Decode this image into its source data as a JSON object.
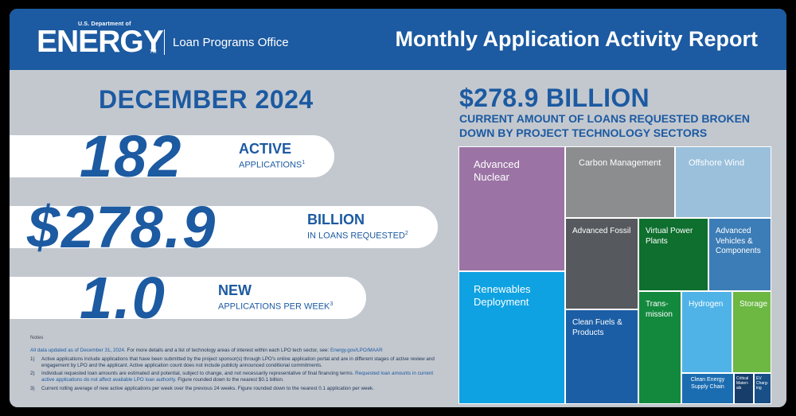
{
  "header": {
    "dept_small": "U.S. Department of",
    "dept_logo": "ENERGY",
    "dept_tm": "TM",
    "office": "Loan Programs Office",
    "title": "Monthly Application Activity Report"
  },
  "month": "DECEMBER 2024",
  "stats": [
    {
      "value": "182",
      "heading": "ACTIVE",
      "sub": "APPLICATIONS",
      "footnote": "1"
    },
    {
      "value": "$278.9",
      "heading": "BILLION",
      "sub": "IN LOANS REQUESTED",
      "footnote": "2"
    },
    {
      "value": "1.0",
      "heading": "NEW",
      "sub": "APPLICATIONS PER WEEK",
      "footnote": "3"
    }
  ],
  "notes": {
    "title": "Notes",
    "intro_a": "All data updated as of December 31, 2024.",
    "intro_b": " For more details and a list of technology areas of interest within each LPO tech sector, see: ",
    "intro_link": "Energy.gov/LPO/MAAR",
    "items": [
      {
        "num": "1)",
        "text": "Active applications include applications that have been submitted by the project sponsor(s) through LPO's online application portal and are in different stages of active review and engagement by LPO and the applicant. Active application count does not include publicly announced conditional commitments."
      },
      {
        "num": "2)",
        "text": "Individual requested loan amounts are estimated and potential, subject to change, and not necessarily representative of final financing terms. ",
        "highlight": "Requested loan amounts in current active applications do not affect available LPO loan authority.",
        "tail": " Figure rounded down to the nearest $0.1 billion."
      },
      {
        "num": "3)",
        "text": "Current rolling average of new active applications per week over the previous 24 weeks. Figure rounded down to the nearest 0.1 application per week."
      }
    ]
  },
  "right": {
    "amount": "$278.9 BILLION",
    "subtitle": "CURRENT AMOUNT OF LOANS REQUESTED BROKEN DOWN BY PROJECT TECHNOLOGY SECTORS"
  },
  "treemap": {
    "sectors": [
      {
        "label": "Advanced Nuclear",
        "color": "#9b74a5"
      },
      {
        "label": "Renewables Deployment",
        "color": "#0ea2e2"
      },
      {
        "label": "Carbon Management",
        "color": "#8b8d8f"
      },
      {
        "label": "Offshore Wind",
        "color": "#9ac0dc"
      },
      {
        "label": "Advanced Fossil",
        "color": "#56595d"
      },
      {
        "label": "Virtual Power Plants",
        "color": "#0e6f2e"
      },
      {
        "label": "Advanced Vehicles & Components",
        "color": "#3c7db7"
      },
      {
        "label": "Clean Fuels & Products",
        "color": "#1b5ea5"
      },
      {
        "label": "Trans-mission",
        "color": "#13893d"
      },
      {
        "label": "Hydrogen",
        "color": "#4fb3e8"
      },
      {
        "label": "Storage",
        "color": "#6cb843"
      },
      {
        "label": "Clean Energy Supply Chain",
        "color": "#1b6db1"
      },
      {
        "label": "Critical Materi-als",
        "color": "#173e6b"
      },
      {
        "label": "EV Charg-ing",
        "color": "#174f86"
      }
    ]
  }
}
